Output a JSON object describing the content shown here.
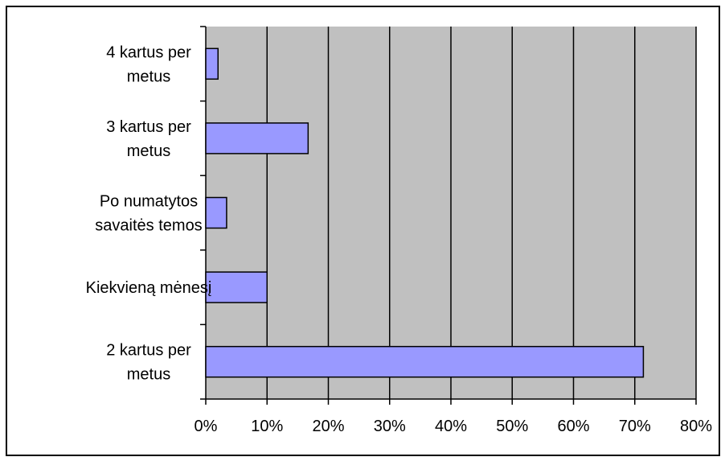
{
  "chart_data": {
    "type": "bar",
    "orientation": "horizontal",
    "categories": [
      [
        "2 kartus per",
        "metus"
      ],
      [
        "Kiekvieną mėnesį"
      ],
      [
        "Po numatytos",
        "savaitės temos"
      ],
      [
        "3 kartus per",
        "metus"
      ],
      [
        "4 kartus per",
        "metus"
      ]
    ],
    "values": [
      71.4,
      10.0,
      3.4,
      16.7,
      2.0
    ],
    "value_unit": "%",
    "xlim": [
      0,
      80
    ],
    "x_ticks": [
      "0%",
      "10%",
      "20%",
      "30%",
      "40%",
      "50%",
      "60%",
      "70%",
      "80%"
    ],
    "grid": "vertical",
    "legend": "none",
    "title": "",
    "xlabel": "",
    "ylabel": "",
    "colors": {
      "bar_fill": "#9999ff",
      "bar_stroke": "#000000",
      "plot_background": "#c0c0c0",
      "gridline": "#000000"
    }
  }
}
